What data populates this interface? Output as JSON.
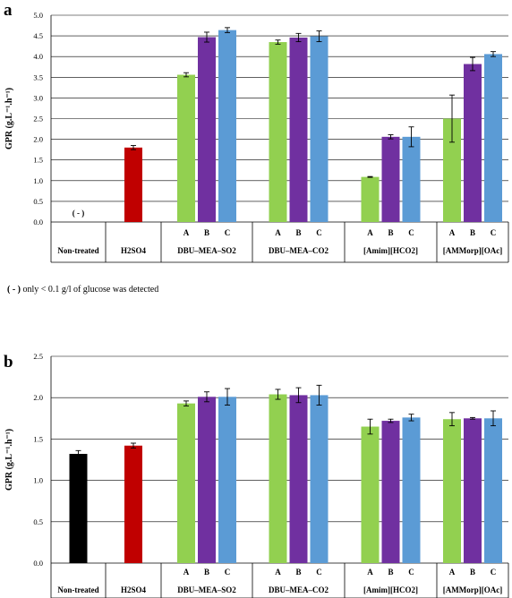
{
  "chart_data": [
    {
      "type": "bar",
      "panel_label": "a",
      "ylabel": "GPR (g.L⁻¹.h⁻¹)",
      "ylim": [
        0,
        5.0
      ],
      "yticks": [
        "0.0",
        "0.5",
        "1.0",
        "1.5",
        "2.0",
        "2.5",
        "3.0",
        "3.5",
        "4.0",
        "4.5",
        "5.0"
      ],
      "grid": true,
      "colors": {
        "black": "#000000",
        "red": "#c00000",
        "A": "#92d050",
        "B": "#7030a0",
        "C": "#5b9bd5"
      },
      "groups": [
        {
          "label": "Non-treated",
          "bars": [],
          "annotation": "( - )"
        },
        {
          "label": "H2SO4",
          "bars": [
            {
              "sub": "",
              "color": "red",
              "value": 1.8,
              "err": 0.05
            }
          ]
        },
        {
          "label": "DBU–MEA–SO2",
          "bars": [
            {
              "sub": "A",
              "color": "A",
              "value": 3.56,
              "err": 0.05
            },
            {
              "sub": "B",
              "color": "B",
              "value": 4.47,
              "err": 0.12
            },
            {
              "sub": "C",
              "color": "C",
              "value": 4.64,
              "err": 0.06
            }
          ]
        },
        {
          "label": "DBU–MEA–CO2",
          "bars": [
            {
              "sub": "A",
              "color": "A",
              "value": 4.35,
              "err": 0.05
            },
            {
              "sub": "B",
              "color": "B",
              "value": 4.46,
              "err": 0.1
            },
            {
              "sub": "C",
              "color": "C",
              "value": 4.49,
              "err": 0.13
            }
          ]
        },
        {
          "label": "[Amim][HCO2]",
          "bars": [
            {
              "sub": "A",
              "color": "A",
              "value": 1.09,
              "err": 0.01
            },
            {
              "sub": "B",
              "color": "B",
              "value": 2.06,
              "err": 0.05
            },
            {
              "sub": "C",
              "color": "C",
              "value": 2.06,
              "err": 0.24
            }
          ]
        },
        {
          "label": "[AMMorp][OAc]",
          "bars": [
            {
              "sub": "A",
              "color": "A",
              "value": 2.5,
              "err": 0.57
            },
            {
              "sub": "B",
              "color": "B",
              "value": 3.82,
              "err": 0.16
            },
            {
              "sub": "C",
              "color": "C",
              "value": 4.06,
              "err": 0.06
            }
          ]
        }
      ]
    },
    {
      "type": "bar",
      "panel_label": "b",
      "ylabel": "GPR (g.L⁻¹.h⁻¹)",
      "ylim": [
        0,
        2.5
      ],
      "yticks": [
        "0.0",
        "0.5",
        "1.0",
        "1.5",
        "2.0",
        "2.5"
      ],
      "grid": true,
      "colors": {
        "black": "#000000",
        "red": "#c00000",
        "A": "#92d050",
        "B": "#7030a0",
        "C": "#5b9bd5"
      },
      "groups": [
        {
          "label": "Non-treated",
          "bars": [
            {
              "sub": "",
              "color": "black",
              "value": 1.32,
              "err": 0.04
            }
          ]
        },
        {
          "label": "H2SO4",
          "bars": [
            {
              "sub": "",
              "color": "red",
              "value": 1.42,
              "err": 0.03
            }
          ]
        },
        {
          "label": "DBU–MEA–SO2",
          "bars": [
            {
              "sub": "A",
              "color": "A",
              "value": 1.93,
              "err": 0.03
            },
            {
              "sub": "B",
              "color": "B",
              "value": 2.01,
              "err": 0.06
            },
            {
              "sub": "C",
              "color": "C",
              "value": 2.01,
              "err": 0.1
            }
          ]
        },
        {
          "label": "DBU–MEA–CO2",
          "bars": [
            {
              "sub": "A",
              "color": "A",
              "value": 2.04,
              "err": 0.06
            },
            {
              "sub": "B",
              "color": "B",
              "value": 2.03,
              "err": 0.09
            },
            {
              "sub": "C",
              "color": "C",
              "value": 2.03,
              "err": 0.12
            }
          ]
        },
        {
          "label": "[Amim][HCO2]",
          "bars": [
            {
              "sub": "A",
              "color": "A",
              "value": 1.65,
              "err": 0.09
            },
            {
              "sub": "B",
              "color": "B",
              "value": 1.72,
              "err": 0.02
            },
            {
              "sub": "C",
              "color": "C",
              "value": 1.76,
              "err": 0.04
            }
          ]
        },
        {
          "label": "[AMMorp][OAc]",
          "bars": [
            {
              "sub": "A",
              "color": "A",
              "value": 1.74,
              "err": 0.08
            },
            {
              "sub": "B",
              "color": "B",
              "value": 1.75,
              "err": 0.01
            },
            {
              "sub": "C",
              "color": "C",
              "value": 1.75,
              "err": 0.09
            }
          ]
        }
      ]
    }
  ],
  "footnote": {
    "symbol": "( - )",
    "text": " only < 0.1 g/l of glucose was detected"
  }
}
